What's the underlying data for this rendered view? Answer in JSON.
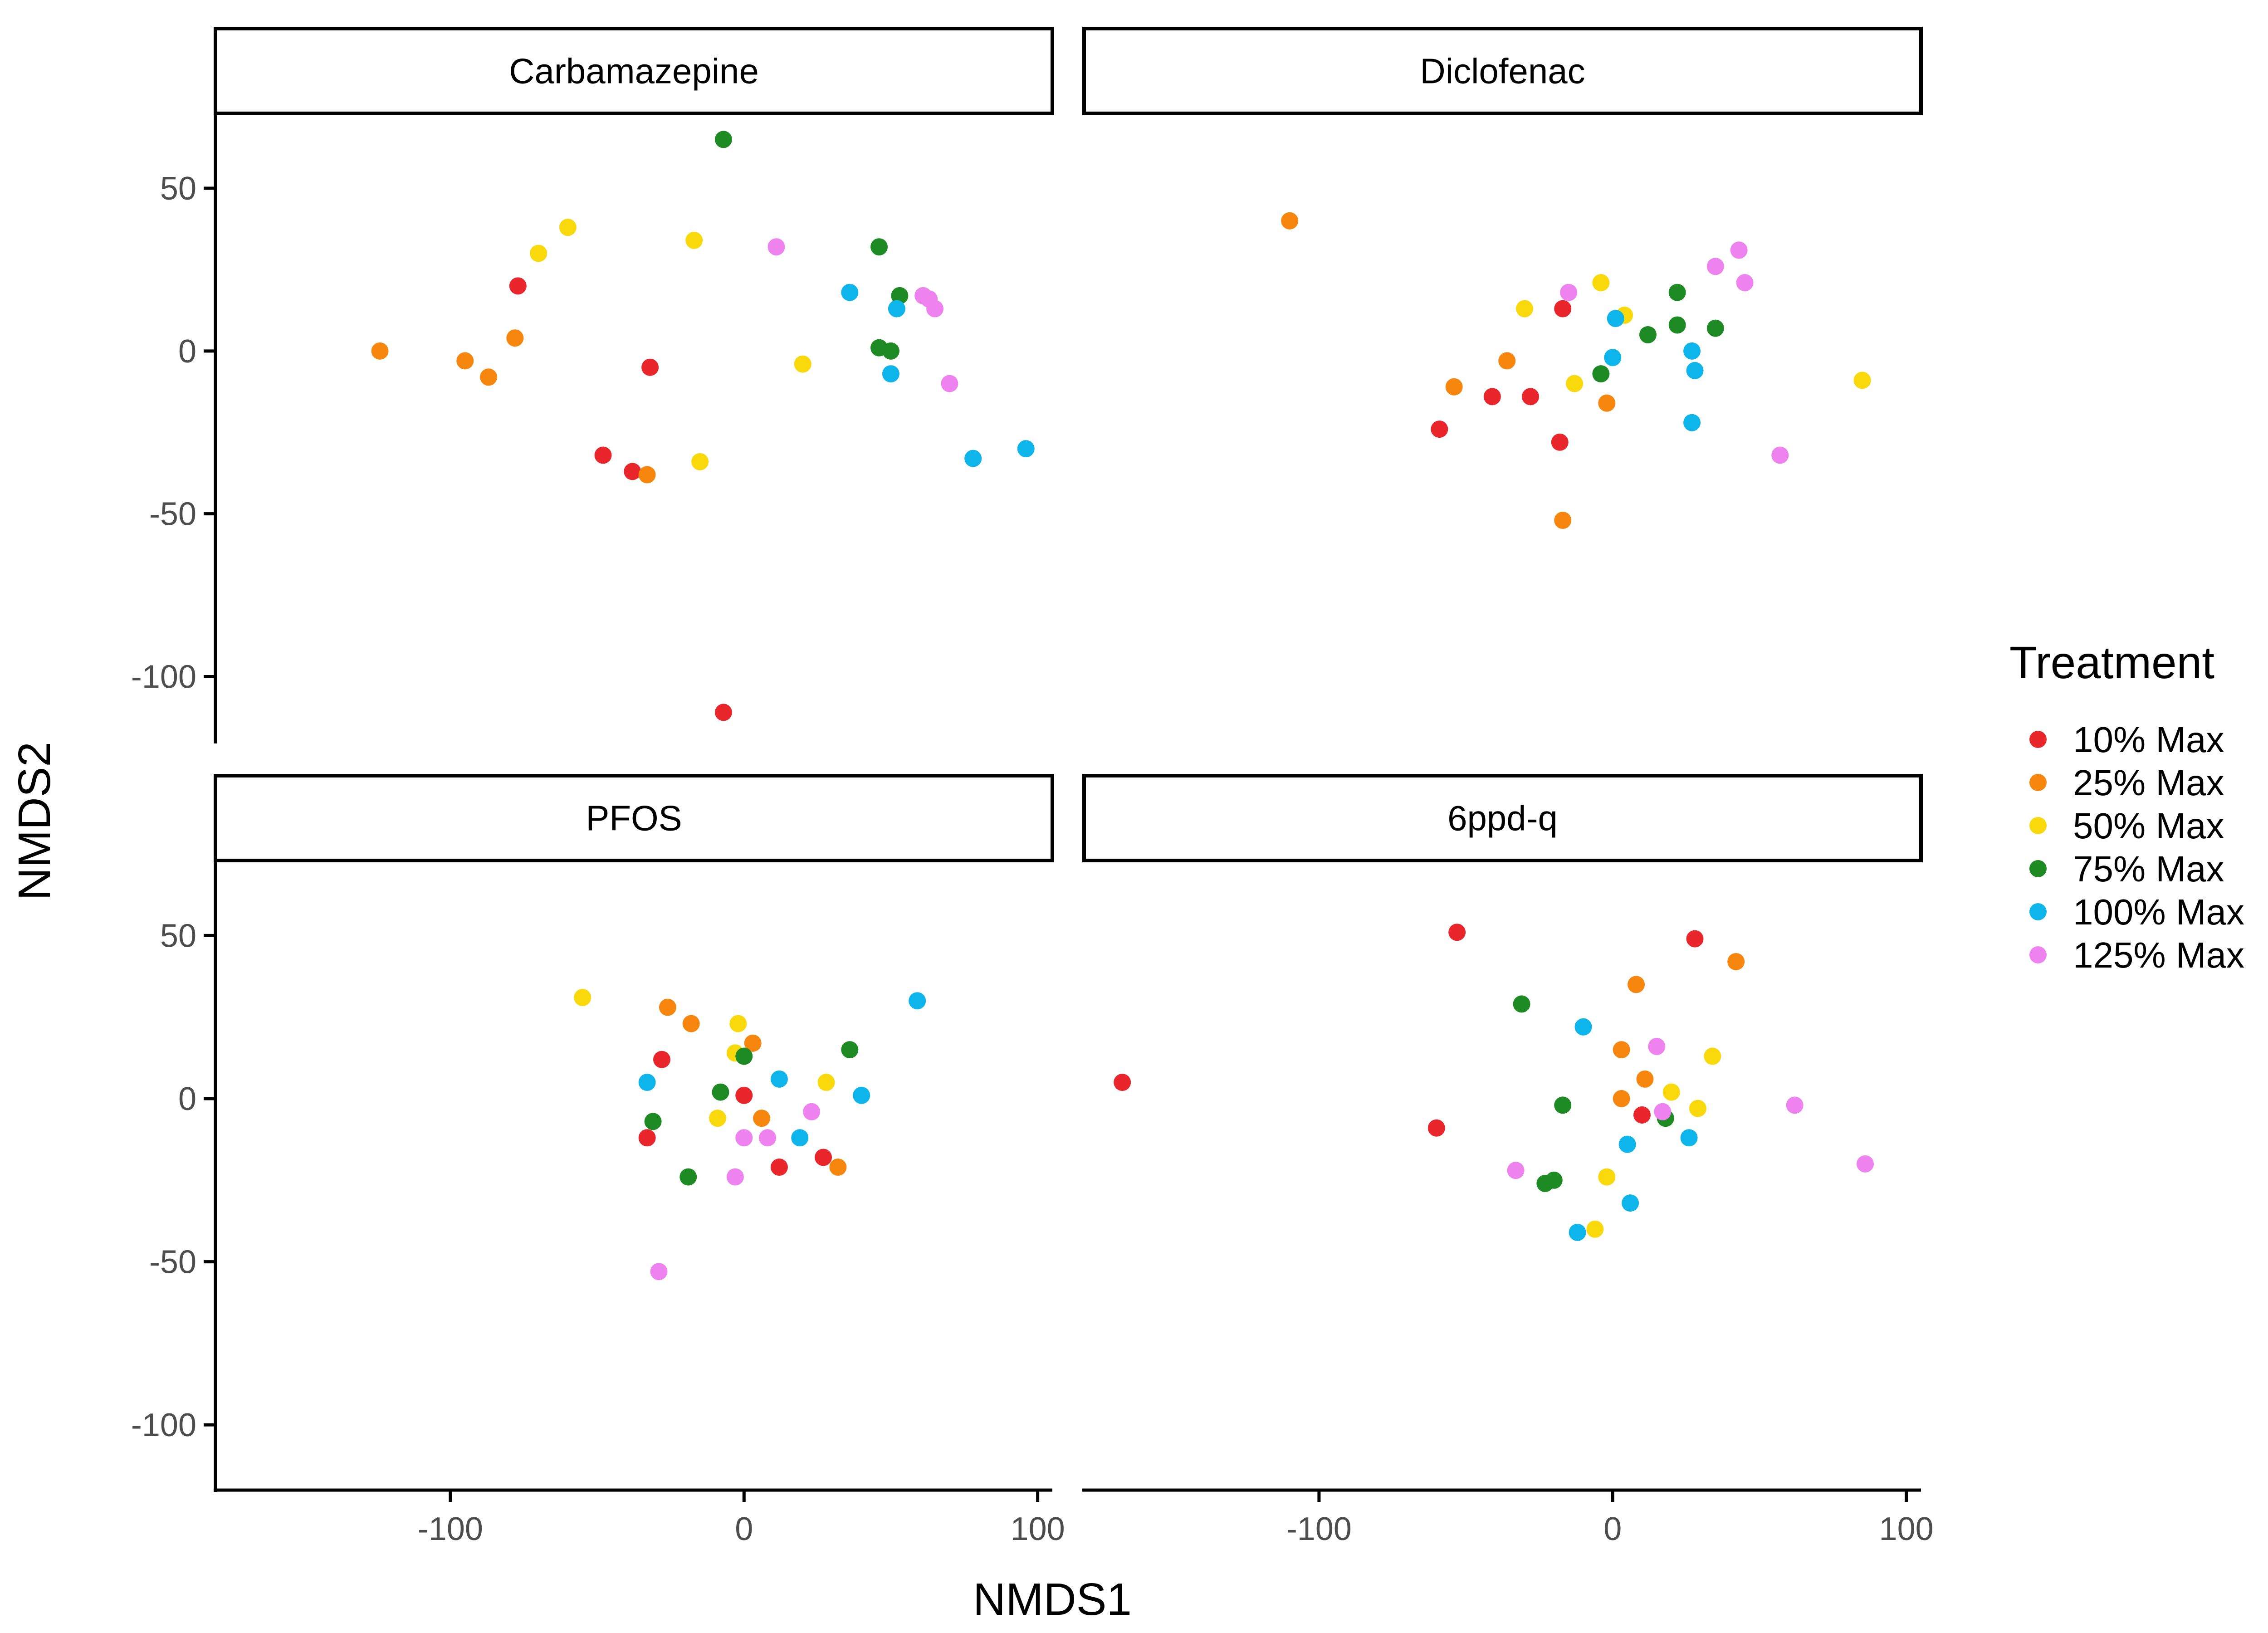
{
  "chart_data": {
    "type": "scatter",
    "facets": [
      "Carbamazepine",
      "Diclofenac",
      "PFOS",
      "6ppd-q"
    ],
    "xlabel": "NMDS1",
    "ylabel": "NMDS2",
    "xlim": [
      -180,
      105
    ],
    "ylim": [
      -120,
      73
    ],
    "xticks": [
      -100,
      0,
      100
    ],
    "yticks": [
      50,
      0,
      -50,
      -100
    ],
    "x_tick_labels": [
      "-100",
      "0",
      "100"
    ],
    "y_tick_labels": [
      "50",
      "0",
      "-50",
      "-100"
    ],
    "grid": false,
    "legend": {
      "title": "Treatment",
      "position": "right",
      "entries": [
        {
          "label": "10% Max",
          "color": "#e8262b"
        },
        {
          "label": "25% Max",
          "color": "#f7860f"
        },
        {
          "label": "50% Max",
          "color": "#f9d90b"
        },
        {
          "label": "75% Max",
          "color": "#1e8a23"
        },
        {
          "label": "100% Max",
          "color": "#0db5ea"
        },
        {
          "label": "125% Max",
          "color": "#ee82ee"
        }
      ]
    },
    "panels": [
      {
        "facet": "Carbamazepine",
        "series": [
          {
            "name": "10% Max",
            "points": [
              [
                -77,
                20
              ],
              [
                -32,
                -5
              ],
              [
                -48,
                -32
              ],
              [
                -38,
                -37
              ],
              [
                -7,
                -111
              ]
            ]
          },
          {
            "name": "25% Max",
            "points": [
              [
                -124,
                0
              ],
              [
                -95,
                -3
              ],
              [
                -87,
                -8
              ],
              [
                -78,
                4
              ],
              [
                -33,
                -38
              ]
            ]
          },
          {
            "name": "50% Max",
            "points": [
              [
                -70,
                30
              ],
              [
                -60,
                38
              ],
              [
                -17,
                34
              ],
              [
                -15,
                -34
              ],
              [
                20,
                -4
              ]
            ]
          },
          {
            "name": "75% Max",
            "points": [
              [
                -7,
                65
              ],
              [
                46,
                32
              ],
              [
                53,
                17
              ],
              [
                46,
                1
              ],
              [
                50,
                0
              ]
            ]
          },
          {
            "name": "100% Max",
            "points": [
              [
                36,
                18
              ],
              [
                52,
                13
              ],
              [
                50,
                -7
              ],
              [
                78,
                -33
              ],
              [
                96,
                -30
              ]
            ]
          },
          {
            "name": "125% Max",
            "points": [
              [
                11,
                32
              ],
              [
                61,
                17
              ],
              [
                63,
                16
              ],
              [
                65,
                13
              ],
              [
                70,
                -10
              ]
            ]
          }
        ]
      },
      {
        "facet": "Diclofenac",
        "series": [
          {
            "name": "10% Max",
            "points": [
              [
                -59,
                -24
              ],
              [
                -41,
                -14
              ],
              [
                -28,
                -14
              ],
              [
                -17,
                13
              ],
              [
                -18,
                -28
              ]
            ]
          },
          {
            "name": "25% Max",
            "points": [
              [
                -110,
                40
              ],
              [
                -54,
                -11
              ],
              [
                -36,
                -3
              ],
              [
                -2,
                -16
              ],
              [
                -17,
                -52
              ]
            ]
          },
          {
            "name": "50% Max",
            "points": [
              [
                -30,
                13
              ],
              [
                -13,
                -10
              ],
              [
                -4,
                21
              ],
              [
                4,
                11
              ],
              [
                85,
                -9
              ]
            ]
          },
          {
            "name": "75% Max",
            "points": [
              [
                -4,
                -7
              ],
              [
                12,
                5
              ],
              [
                22,
                18
              ],
              [
                22,
                8
              ],
              [
                35,
                7
              ]
            ]
          },
          {
            "name": "100% Max",
            "points": [
              [
                1,
                10
              ],
              [
                0,
                -2
              ],
              [
                27,
                0
              ],
              [
                28,
                -6
              ],
              [
                27,
                -22
              ]
            ]
          },
          {
            "name": "125% Max",
            "points": [
              [
                -15,
                18
              ],
              [
                35,
                26
              ],
              [
                43,
                31
              ],
              [
                45,
                21
              ],
              [
                57,
                -32
              ]
            ]
          }
        ]
      },
      {
        "facet": "PFOS",
        "series": [
          {
            "name": "10% Max",
            "points": [
              [
                -28,
                12
              ],
              [
                -33,
                -12
              ],
              [
                0,
                1
              ],
              [
                12,
                -21
              ],
              [
                27,
                -18
              ]
            ]
          },
          {
            "name": "25% Max",
            "points": [
              [
                -26,
                28
              ],
              [
                -18,
                23
              ],
              [
                3,
                17
              ],
              [
                6,
                -6
              ],
              [
                32,
                -21
              ]
            ]
          },
          {
            "name": "50% Max",
            "points": [
              [
                -55,
                31
              ],
              [
                -2,
                23
              ],
              [
                -3,
                14
              ],
              [
                -9,
                -6
              ],
              [
                28,
                5
              ]
            ]
          },
          {
            "name": "75% Max",
            "points": [
              [
                0,
                13
              ],
              [
                36,
                15
              ],
              [
                -8,
                2
              ],
              [
                -31,
                -7
              ],
              [
                -19,
                -24
              ]
            ]
          },
          {
            "name": "100% Max",
            "points": [
              [
                -33,
                5
              ],
              [
                12,
                6
              ],
              [
                40,
                1
              ],
              [
                19,
                -12
              ],
              [
                59,
                30
              ]
            ]
          },
          {
            "name": "125% Max",
            "points": [
              [
                23,
                -4
              ],
              [
                0,
                -12
              ],
              [
                8,
                -12
              ],
              [
                -3,
                -24
              ],
              [
                -29,
                -53
              ]
            ]
          }
        ]
      },
      {
        "facet": "6ppd-q",
        "series": [
          {
            "name": "10% Max",
            "points": [
              [
                -167,
                5
              ],
              [
                -53,
                51
              ],
              [
                -60,
                -9
              ],
              [
                10,
                -5
              ],
              [
                28,
                49
              ]
            ]
          },
          {
            "name": "25% Max",
            "points": [
              [
                8,
                35
              ],
              [
                3,
                15
              ],
              [
                11,
                6
              ],
              [
                3,
                0
              ],
              [
                42,
                42
              ]
            ]
          },
          {
            "name": "50% Max",
            "points": [
              [
                34,
                13
              ],
              [
                20,
                2
              ],
              [
                29,
                -3
              ],
              [
                -2,
                -24
              ],
              [
                -6,
                -40
              ]
            ]
          },
          {
            "name": "75% Max",
            "points": [
              [
                -31,
                29
              ],
              [
                -17,
                -2
              ],
              [
                18,
                -6
              ],
              [
                -23,
                -26
              ],
              [
                -20,
                -25
              ]
            ]
          },
          {
            "name": "100% Max",
            "points": [
              [
                -10,
                22
              ],
              [
                5,
                -14
              ],
              [
                26,
                -12
              ],
              [
                6,
                -32
              ],
              [
                -12,
                -41
              ]
            ]
          },
          {
            "name": "125% Max",
            "points": [
              [
                15,
                16
              ],
              [
                17,
                -4
              ],
              [
                62,
                -2
              ],
              [
                86,
                -20
              ],
              [
                -33,
                -22
              ]
            ]
          }
        ]
      }
    ]
  }
}
